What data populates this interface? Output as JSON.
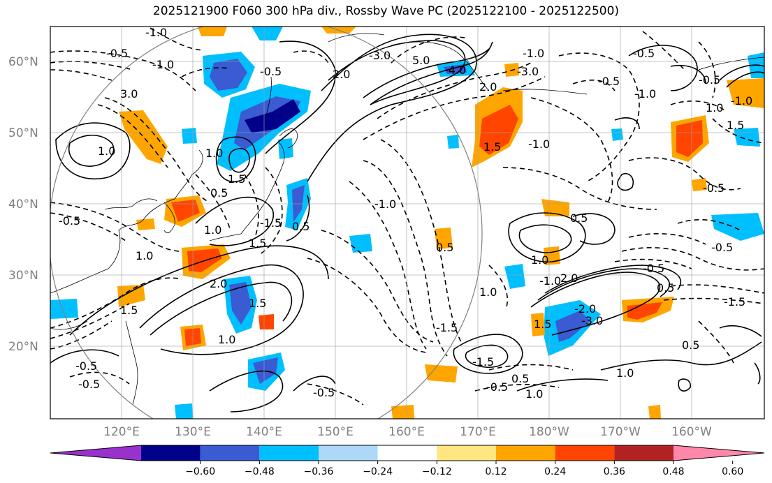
{
  "title": "2025121900 F060 300 hPa div., Rossby Wave PC (2025122100 - 2025122500)",
  "map": {
    "lon_labels": [
      "120°E",
      "130°E",
      "140°E",
      "150°E",
      "160°E",
      "170°E",
      "180°W",
      "170°W",
      "160°W"
    ],
    "lat_labels": [
      "60°N",
      "50°N",
      "40°N",
      "30°N",
      "20°N"
    ],
    "grid": true,
    "label_color": "#808080",
    "contour_labels": [
      "-1.0",
      "-1.0",
      "-0.5",
      "1.0",
      "-0.5",
      "2.0",
      "-3.0",
      "5.0",
      "-4.0",
      "3.0",
      "2.0",
      "1.5",
      "0.5",
      "-1.0",
      "-3.0",
      "-1.0",
      "-0.5",
      "0.5",
      "1.5",
      "1.0",
      "-0.5",
      "1.0",
      "1.5",
      "-0.5",
      "-1.0",
      "0.5",
      "1.0",
      "-0.5",
      "1.0",
      "-1.5",
      "1.5",
      "2.0",
      "-0.5",
      "-1.0",
      "2.0",
      "1.5",
      "1.0",
      "-0.5",
      "-1.0",
      "0.5",
      "1.5",
      "-2.0",
      "-3.0",
      "0.5",
      "-1.5",
      "-0.5",
      "1.0",
      "-0.5",
      "0.5",
      "1.0",
      "-1.5",
      "1.0",
      "-0.5",
      "-1.5",
      "0.5",
      "-0.5",
      "-1.0",
      "1.0",
      "1.5",
      "-0.5"
    ]
  },
  "colorbar": {
    "ticks": [
      "−0.60",
      "−0.48",
      "−0.36",
      "−0.24",
      "−0.12",
      "0.12",
      "0.24",
      "0.36",
      "0.48",
      "0.60"
    ],
    "colors": [
      "#9932cc",
      "#00008b",
      "#3a5bd1",
      "#00bfff",
      "#add8f7",
      "#ffffff",
      "#ffe680",
      "#ffa500",
      "#ff4500",
      "#b22222",
      "#ff88aa"
    ]
  }
}
